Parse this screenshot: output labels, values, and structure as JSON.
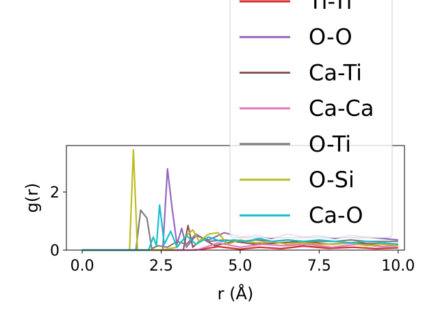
{
  "chart_data": {
    "type": "line",
    "title": "",
    "xlabel": "r (Å)",
    "ylabel": "g(r)",
    "xlim": [
      -0.5,
      10.2
    ],
    "ylim": [
      0,
      3.6
    ],
    "xticks": [
      0.0,
      2.5,
      5.0,
      7.5,
      10.0
    ],
    "xtick_labels": [
      "0.0",
      "2.5",
      "5.0",
      "7.5",
      "10.0"
    ],
    "yticks": [
      0,
      2
    ],
    "ytick_labels": [
      "0",
      "2"
    ],
    "grid": false,
    "legend_position": "upper-right",
    "series": [
      {
        "name": "Ti-Ti",
        "color": "#d62728",
        "x": [
          0,
          3.5,
          3.9,
          4.3,
          5.0,
          5.6,
          6.3,
          7.0,
          7.8,
          8.6,
          9.3,
          10.0
        ],
        "y": [
          0,
          0,
          0.05,
          0.12,
          0.03,
          0.1,
          0.05,
          0.14,
          0.06,
          0.1,
          0.05,
          0.08
        ]
      },
      {
        "name": "O-O",
        "color": "#9467bd",
        "x": [
          0,
          2.55,
          2.7,
          2.85,
          3.0,
          3.15,
          3.3,
          3.6,
          4.0,
          4.5,
          5.0,
          5.5,
          6.0,
          6.5,
          7.0,
          7.5,
          8.0,
          8.5,
          9.0,
          9.5,
          10.0
        ],
        "y": [
          0,
          0,
          2.8,
          1.4,
          0.2,
          0.75,
          0.1,
          0.5,
          0.35,
          0.6,
          0.45,
          0.5,
          0.4,
          0.55,
          0.45,
          0.5,
          0.4,
          0.5,
          0.45,
          0.4,
          0.35
        ]
      },
      {
        "name": "Ca-Ti",
        "color": "#8c564b",
        "x": [
          0,
          3.2,
          3.35,
          3.5,
          3.8,
          4.2,
          4.8,
          5.5,
          6.2,
          7.0,
          7.8,
          8.6,
          9.4,
          10.0
        ],
        "y": [
          0,
          0,
          0.85,
          0.1,
          0.4,
          0.15,
          0.3,
          0.2,
          0.25,
          0.3,
          0.2,
          0.25,
          0.2,
          0.2
        ]
      },
      {
        "name": "Ca-Ca",
        "color": "#e377c2",
        "x": [
          0,
          3.6,
          3.9,
          4.3,
          5.0,
          5.7,
          6.4,
          7.1,
          7.9,
          8.7,
          9.5,
          10.0
        ],
        "y": [
          0,
          0,
          0.1,
          0.25,
          0.1,
          0.2,
          0.15,
          0.2,
          0.1,
          0.2,
          0.12,
          0.15
        ]
      },
      {
        "name": "O-Ti",
        "color": "#7f7f7f",
        "x": [
          0,
          1.7,
          1.85,
          2.05,
          2.2,
          2.4,
          2.7,
          3.0,
          3.3,
          3.6,
          4.0,
          4.5,
          5.0,
          5.5,
          6.0,
          6.5,
          7.0,
          7.5,
          8.0,
          8.5,
          9.0,
          9.5,
          10.0
        ],
        "y": [
          0,
          0,
          1.38,
          1.1,
          0.05,
          0.15,
          0.1,
          0.3,
          0.2,
          0.55,
          0.3,
          0.35,
          0.3,
          0.35,
          0.3,
          0.35,
          0.3,
          0.3,
          0.3,
          0.35,
          0.3,
          0.3,
          0.3
        ]
      },
      {
        "name": "O-Si",
        "color": "#bcbd22",
        "x": [
          0,
          1.5,
          1.62,
          1.75,
          2.0,
          2.5,
          3.0,
          3.3,
          3.5,
          3.7,
          4.0,
          4.3,
          4.6,
          5.0,
          5.5,
          6.0,
          6.5,
          7.0,
          7.5,
          8.0,
          8.5,
          9.0,
          9.5,
          10.0
        ],
        "y": [
          0,
          0,
          3.45,
          0,
          0,
          0,
          0.1,
          0.5,
          0.7,
          0.3,
          0.55,
          0.6,
          0.2,
          0.35,
          0.25,
          0.3,
          0.2,
          0.25,
          0.2,
          0.2,
          0.25,
          0.15,
          0.2,
          0.15
        ]
      },
      {
        "name": "Ca-O",
        "color": "#17becf",
        "x": [
          0,
          2.1,
          2.25,
          2.35,
          2.45,
          2.6,
          2.8,
          3.0,
          3.3,
          3.6,
          4.0,
          4.4,
          4.8,
          5.2,
          5.6,
          6.0,
          6.5,
          7.0,
          7.5,
          8.0,
          8.5,
          9.0,
          9.5,
          10.0
        ],
        "y": [
          0,
          0,
          0.45,
          0.15,
          1.55,
          0.2,
          0.65,
          0.1,
          0.5,
          0.2,
          0.45,
          0.3,
          0.35,
          0.3,
          0.4,
          0.3,
          0.35,
          0.3,
          0.35,
          0.3,
          0.25,
          0.3,
          0.25,
          0.2
        ]
      }
    ]
  }
}
